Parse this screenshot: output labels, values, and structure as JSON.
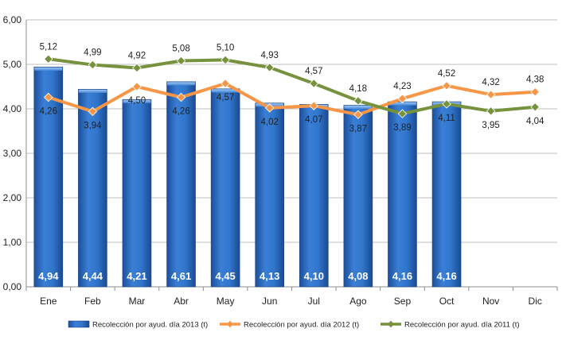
{
  "chart_data": {
    "type": "bar",
    "categories": [
      "Ene",
      "Feb",
      "Mar",
      "Abr",
      "May",
      "Jun",
      "Jul",
      "Ago",
      "Sep",
      "Oct",
      "Nov",
      "Dic"
    ],
    "ylim": [
      0,
      6
    ],
    "yticks": [
      "0,00",
      "1,00",
      "2,00",
      "3,00",
      "4,00",
      "5,00",
      "6,00"
    ],
    "grid": true,
    "legend_position": "bottom",
    "series": [
      {
        "name": "Recolección por ayud. día 2013 (t)",
        "kind": "bar",
        "color": "#2f6fc4",
        "values": [
          4.94,
          4.44,
          4.21,
          4.61,
          4.45,
          4.13,
          4.1,
          4.08,
          4.16,
          4.16,
          null,
          null
        ],
        "labels": [
          "4,94",
          "4,44",
          "4,21",
          "4,61",
          "4,45",
          "4,13",
          "4,10",
          "4,08",
          "4,16",
          "4,16",
          "",
          ""
        ]
      },
      {
        "name": "Recolección por ayud. día 2012 (t)",
        "kind": "line",
        "color": "#f79646",
        "values": [
          4.26,
          3.94,
          4.5,
          4.26,
          4.57,
          4.02,
          4.07,
          3.87,
          4.23,
          4.52,
          4.32,
          4.38
        ],
        "labels": [
          "4,26",
          "3,94",
          "4,50",
          "4,26",
          "4,57",
          "4,02",
          "4,07",
          "3,87",
          "4,23",
          "4,52",
          "4,32",
          "4,38"
        ]
      },
      {
        "name": "Recolección por ayud. día 2011 (t)",
        "kind": "line",
        "color": "#76923c",
        "values": [
          5.12,
          4.99,
          4.92,
          5.08,
          5.1,
          4.93,
          4.57,
          4.18,
          3.89,
          4.11,
          3.95,
          4.04
        ],
        "labels": [
          "5,12",
          "4,99",
          "4,92",
          "5,08",
          "5,10",
          "4,93",
          "4,57",
          "4,18",
          "3,89",
          "4,11",
          "3,95",
          "4,04"
        ]
      }
    ]
  }
}
